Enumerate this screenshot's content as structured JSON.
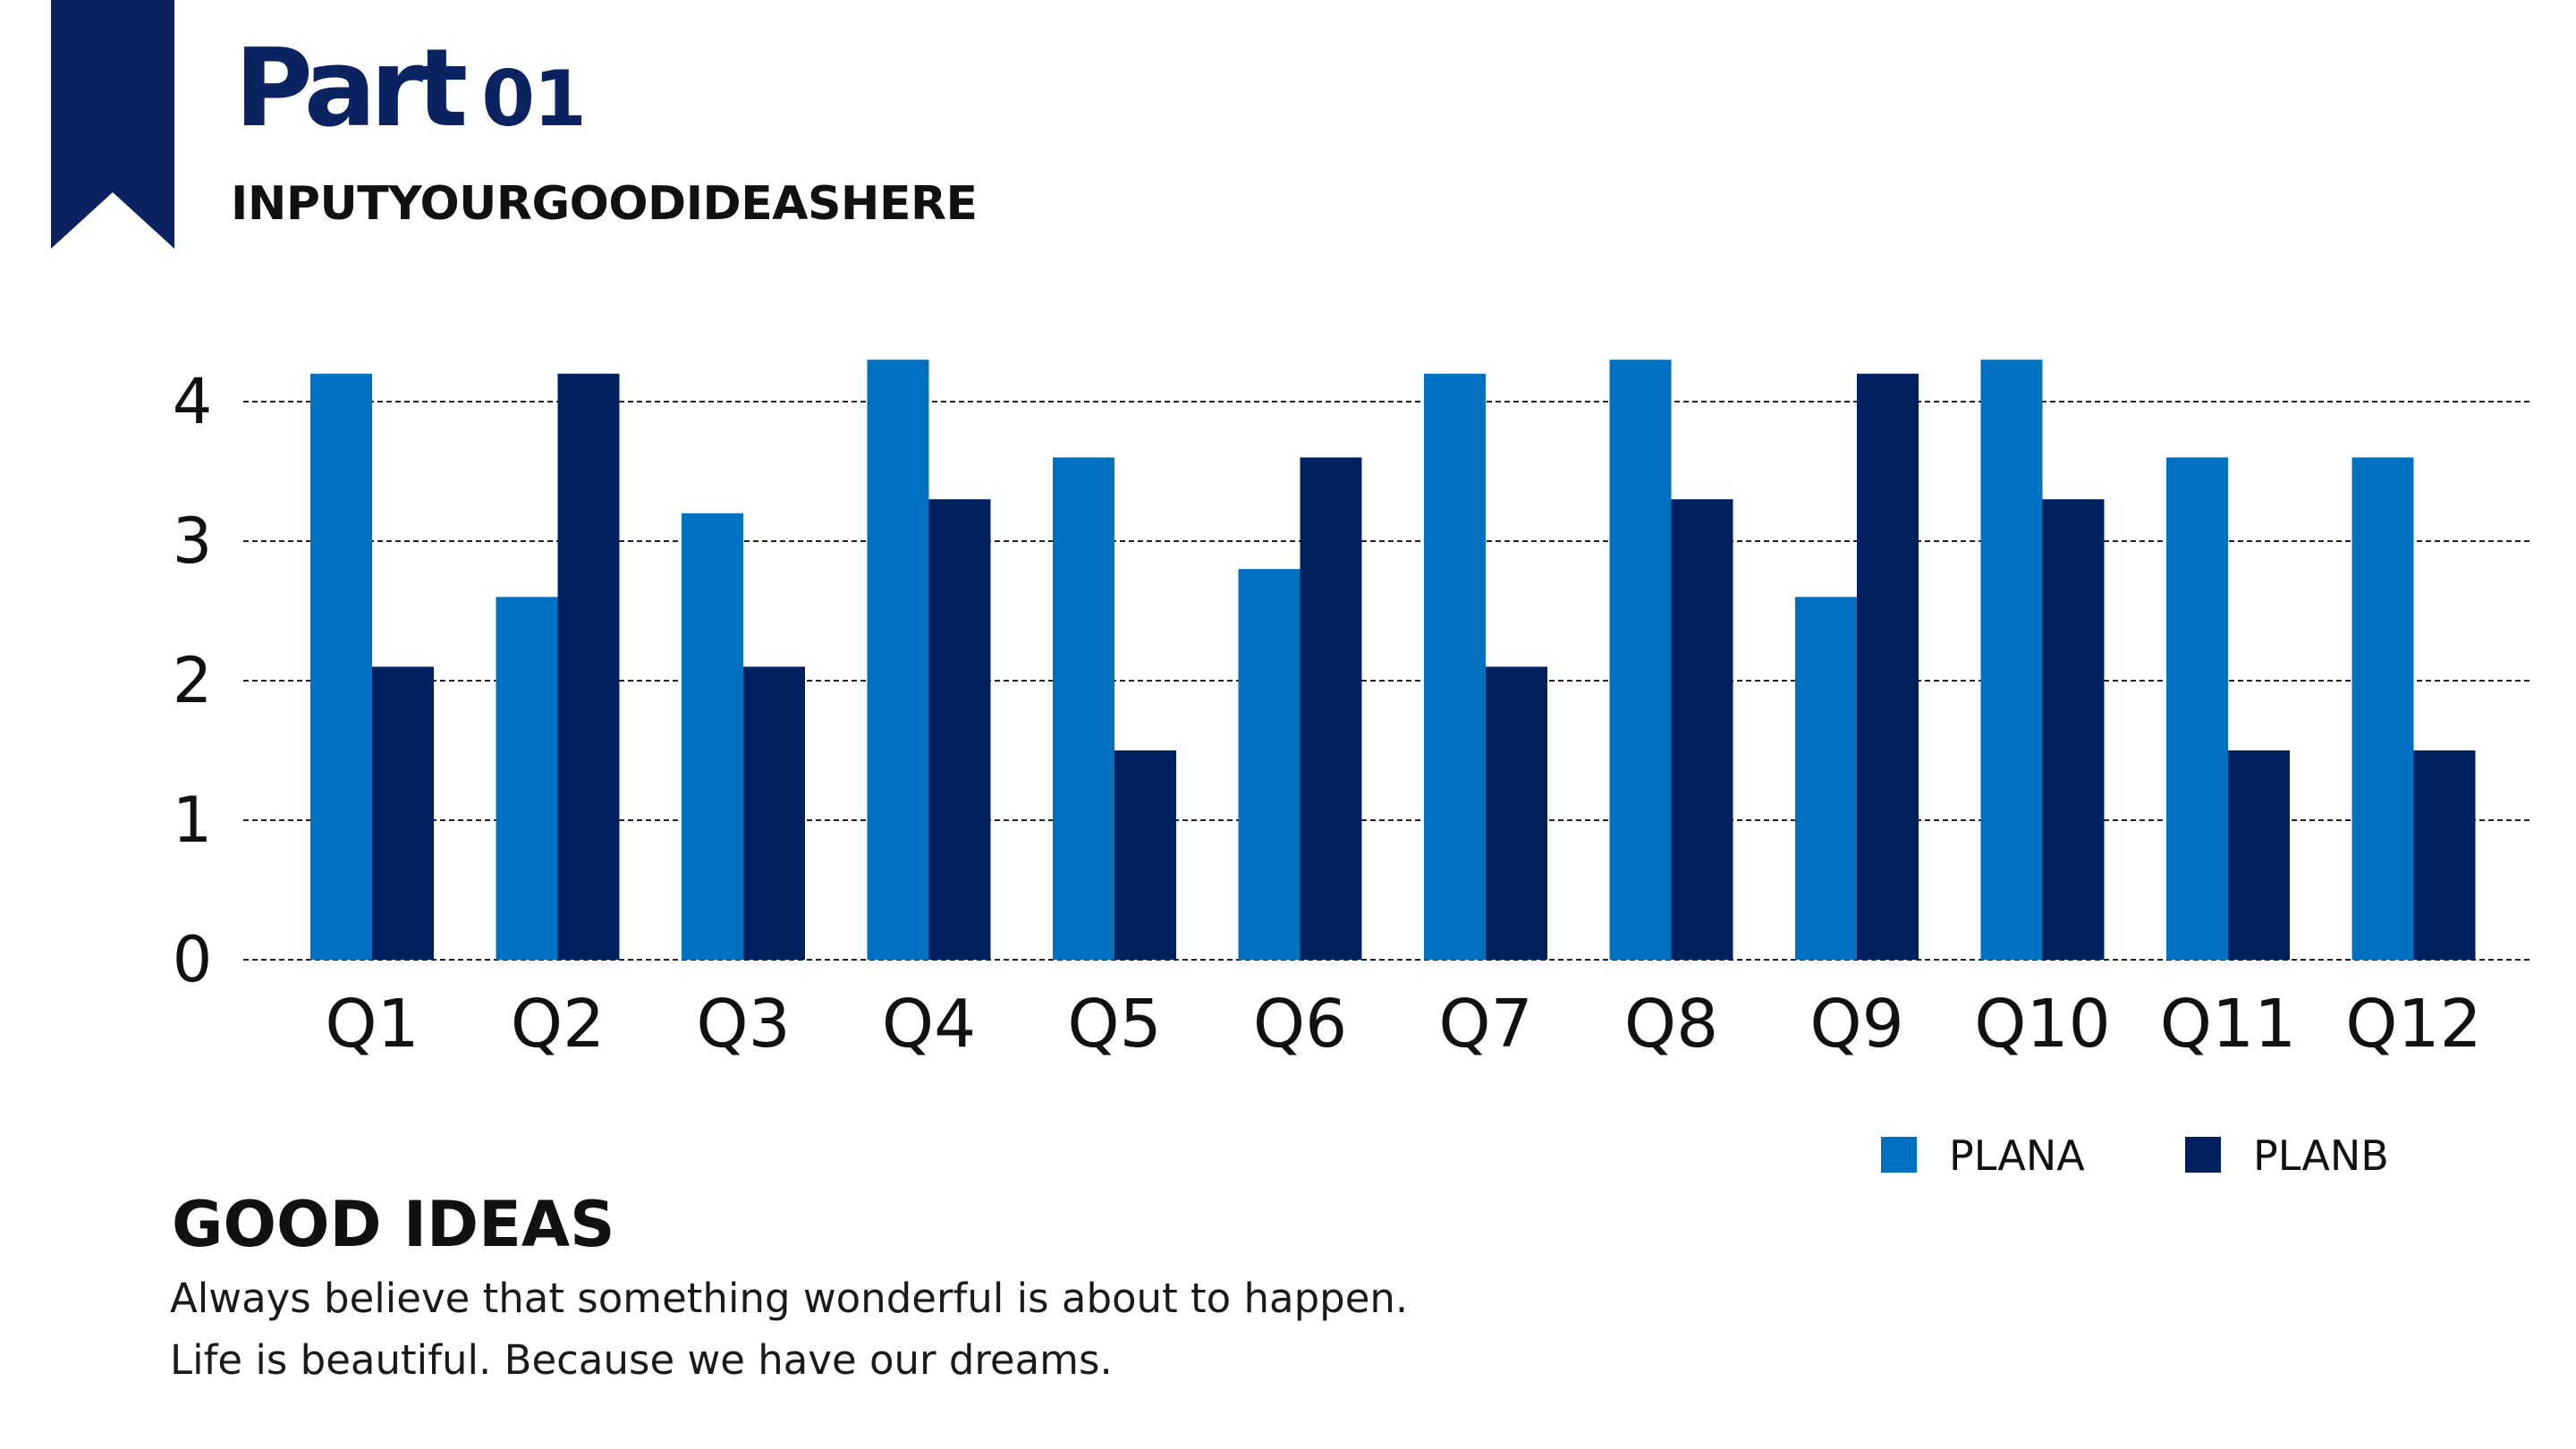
{
  "header": {
    "title_main": "Part",
    "title_number": "01",
    "subtitle": "INPUTYOURGOODIDEASHERE"
  },
  "colors": {
    "accent": "#0b2461",
    "plan_a": "#0070c0",
    "plan_b": "#002060"
  },
  "chart_data": {
    "type": "bar",
    "categories": [
      "Q1",
      "Q2",
      "Q3",
      "Q4",
      "Q5",
      "Q6",
      "Q7",
      "Q8",
      "Q9",
      "Q10",
      "Q11",
      "Q12"
    ],
    "series": [
      {
        "name": "PLANA",
        "color": "#0070c0",
        "values": [
          4.2,
          2.6,
          3.2,
          4.3,
          3.6,
          2.8,
          4.2,
          4.3,
          2.6,
          4.3,
          3.6,
          3.6
        ]
      },
      {
        "name": "PLANB",
        "color": "#002060",
        "values": [
          2.1,
          4.2,
          2.1,
          3.3,
          1.5,
          3.6,
          2.1,
          3.3,
          4.2,
          3.3,
          1.5,
          1.5
        ]
      }
    ],
    "yticks": [
      "0",
      "1",
      "2",
      "3",
      "4"
    ],
    "ylim": [
      0,
      4.3
    ],
    "grid": true,
    "gridStyle": "dashed",
    "legend": "bottom-right"
  },
  "body": {
    "heading": "GOOD IDEAS",
    "lines": [
      "Always believe that something wonderful is about to happen.",
      "Life is beautiful. Because we have our dreams."
    ]
  }
}
